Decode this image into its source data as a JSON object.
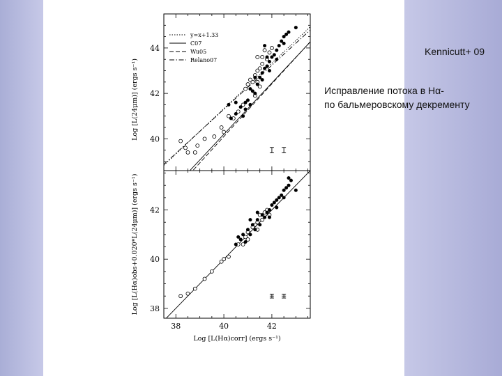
{
  "slide": {
    "reference": "Kennicutt+  09",
    "correction_line1": "Исправление потока в Hα-",
    "correction_line2": "по бальмеровскому декременту"
  },
  "chart_data": [
    {
      "type": "scatter",
      "panel": "top",
      "ylabel": "Log [L(24μm)] (ergs s⁻¹)",
      "xlim": [
        37.5,
        43.6
      ],
      "ylim": [
        38.6,
        45.5
      ],
      "yticks": [
        "40",
        "42",
        "44"
      ],
      "legend": [
        {
          "name": "y=x+1.33",
          "style": "dotted"
        },
        {
          "name": "C07",
          "style": "solid"
        },
        {
          "name": "Wu05",
          "style": "dashed"
        },
        {
          "name": "Relano07",
          "style": "dashdot"
        }
      ],
      "legend_position": "top-left",
      "lines": [
        {
          "name": "y=x+1.33",
          "slope": 1.0,
          "intercept": 1.33
        },
        {
          "name": "C07",
          "slope": 1.13,
          "intercept": -5.0
        },
        {
          "name": "Wu05",
          "slope": 1.16,
          "intercept": -6.3
        },
        {
          "name": "Relano07",
          "slope": 0.97,
          "intercept": 2.5
        }
      ],
      "error_bars": [
        {
          "x": 42.0,
          "y": 39.5,
          "err": 0.12
        },
        {
          "x": 42.5,
          "y": 39.5,
          "err": 0.12
        }
      ],
      "series": [
        {
          "marker": "open",
          "points": [
            [
              38.2,
              39.9
            ],
            [
              38.4,
              39.6
            ],
            [
              38.5,
              39.4
            ],
            [
              38.8,
              39.4
            ],
            [
              38.9,
              39.7
            ],
            [
              39.2,
              40.0
            ],
            [
              39.6,
              40.1
            ],
            [
              39.9,
              40.5
            ],
            [
              40.0,
              40.3
            ],
            [
              40.4,
              40.9
            ],
            [
              40.6,
              41.2
            ],
            [
              40.9,
              42.2
            ],
            [
              41.0,
              42.4
            ],
            [
              41.2,
              42.5
            ],
            [
              41.3,
              42.8
            ],
            [
              41.4,
              43.0
            ],
            [
              41.5,
              43.1
            ],
            [
              41.6,
              43.3
            ],
            [
              41.8,
              43.5
            ],
            [
              41.4,
              43.6
            ],
            [
              41.7,
              43.9
            ],
            [
              41.5,
              42.3
            ],
            [
              41.3,
              41.9
            ],
            [
              40.8,
              41.5
            ],
            [
              40.2,
              41.0
            ],
            [
              41.9,
              43.8
            ],
            [
              42.0,
              44.0
            ],
            [
              41.6,
              43.6
            ],
            [
              41.1,
              42.6
            ],
            [
              41.4,
              42.5
            ]
          ]
        },
        {
          "marker": "filled",
          "points": [
            [
              40.3,
              40.9
            ],
            [
              40.5,
              41.1
            ],
            [
              40.7,
              41.4
            ],
            [
              40.8,
              41.0
            ],
            [
              40.9,
              41.3
            ],
            [
              41.0,
              41.7
            ],
            [
              41.1,
              41.5
            ],
            [
              41.2,
              42.1
            ],
            [
              41.3,
              42.0
            ],
            [
              41.4,
              42.4
            ],
            [
              41.5,
              42.7
            ],
            [
              41.6,
              42.9
            ],
            [
              41.7,
              43.1
            ],
            [
              41.8,
              43.2
            ],
            [
              41.9,
              43.4
            ],
            [
              42.0,
              43.6
            ],
            [
              42.1,
              43.7
            ],
            [
              42.2,
              43.9
            ],
            [
              42.3,
              44.1
            ],
            [
              42.4,
              44.3
            ],
            [
              42.5,
              44.5
            ],
            [
              42.6,
              44.6
            ],
            [
              42.7,
              44.7
            ],
            [
              43.0,
              44.9
            ],
            [
              42.5,
              44.2
            ],
            [
              41.9,
              43.0
            ],
            [
              41.8,
              43.6
            ],
            [
              41.3,
              42.7
            ],
            [
              40.9,
              41.6
            ],
            [
              40.5,
              41.6
            ],
            [
              41.6,
              42.6
            ],
            [
              42.2,
              43.5
            ],
            [
              41.1,
              42.2
            ],
            [
              40.2,
              41.5
            ],
            [
              41.7,
              44.1
            ]
          ]
        }
      ]
    },
    {
      "type": "scatter",
      "panel": "bottom",
      "xlabel": "Log [L(Hα)corr] (ergs s⁻¹)",
      "ylabel": "Log [L(Hα)obs+0.020*L(24μm)] (ergs s⁻¹)",
      "xlim": [
        37.5,
        43.6
      ],
      "ylim": [
        37.6,
        43.6
      ],
      "xticks": [
        "38",
        "40",
        "42"
      ],
      "yticks": [
        "38",
        "40",
        "42"
      ],
      "lines": [
        {
          "name": "one-to-one",
          "slope": 1.0,
          "intercept": 0.0
        }
      ],
      "error_bars": [
        {
          "x": 42.0,
          "y": 38.5,
          "err": 0.08
        },
        {
          "x": 42.5,
          "y": 38.5,
          "err": 0.08
        }
      ],
      "series": [
        {
          "marker": "open",
          "points": [
            [
              38.2,
              38.5
            ],
            [
              38.5,
              38.6
            ],
            [
              38.8,
              38.8
            ],
            [
              39.2,
              39.2
            ],
            [
              39.5,
              39.5
            ],
            [
              39.9,
              39.9
            ],
            [
              40.0,
              40.0
            ],
            [
              40.2,
              40.1
            ],
            [
              40.6,
              40.6
            ],
            [
              40.9,
              40.9
            ],
            [
              41.0,
              41.1
            ],
            [
              41.2,
              41.3
            ],
            [
              41.4,
              41.5
            ],
            [
              41.5,
              41.8
            ],
            [
              41.7,
              41.9
            ],
            [
              41.8,
              42.0
            ],
            [
              41.4,
              41.2
            ],
            [
              41.0,
              40.8
            ],
            [
              40.8,
              40.6
            ],
            [
              41.6,
              41.6
            ],
            [
              41.9,
              41.8
            ],
            [
              41.3,
              41.4
            ]
          ]
        },
        {
          "marker": "filled",
          "points": [
            [
              40.5,
              40.6
            ],
            [
              40.7,
              40.8
            ],
            [
              40.8,
              41.0
            ],
            [
              40.9,
              40.7
            ],
            [
              41.0,
              41.2
            ],
            [
              41.1,
              41.0
            ],
            [
              41.2,
              41.4
            ],
            [
              41.3,
              41.2
            ],
            [
              41.4,
              41.6
            ],
            [
              41.5,
              41.4
            ],
            [
              41.6,
              41.8
            ],
            [
              41.7,
              41.7
            ],
            [
              41.8,
              41.9
            ],
            [
              41.9,
              42.0
            ],
            [
              42.0,
              42.2
            ],
            [
              42.1,
              42.3
            ],
            [
              42.2,
              42.4
            ],
            [
              42.3,
              42.5
            ],
            [
              42.4,
              42.6
            ],
            [
              42.5,
              42.8
            ],
            [
              42.6,
              42.9
            ],
            [
              42.7,
              43.0
            ],
            [
              42.8,
              43.2
            ],
            [
              43.0,
              42.8
            ],
            [
              42.5,
              42.5
            ],
            [
              41.9,
              41.7
            ],
            [
              41.4,
              41.9
            ],
            [
              41.1,
              41.6
            ],
            [
              40.6,
              40.9
            ],
            [
              42.2,
              42.1
            ],
            [
              42.7,
              43.3
            ]
          ]
        }
      ]
    }
  ]
}
